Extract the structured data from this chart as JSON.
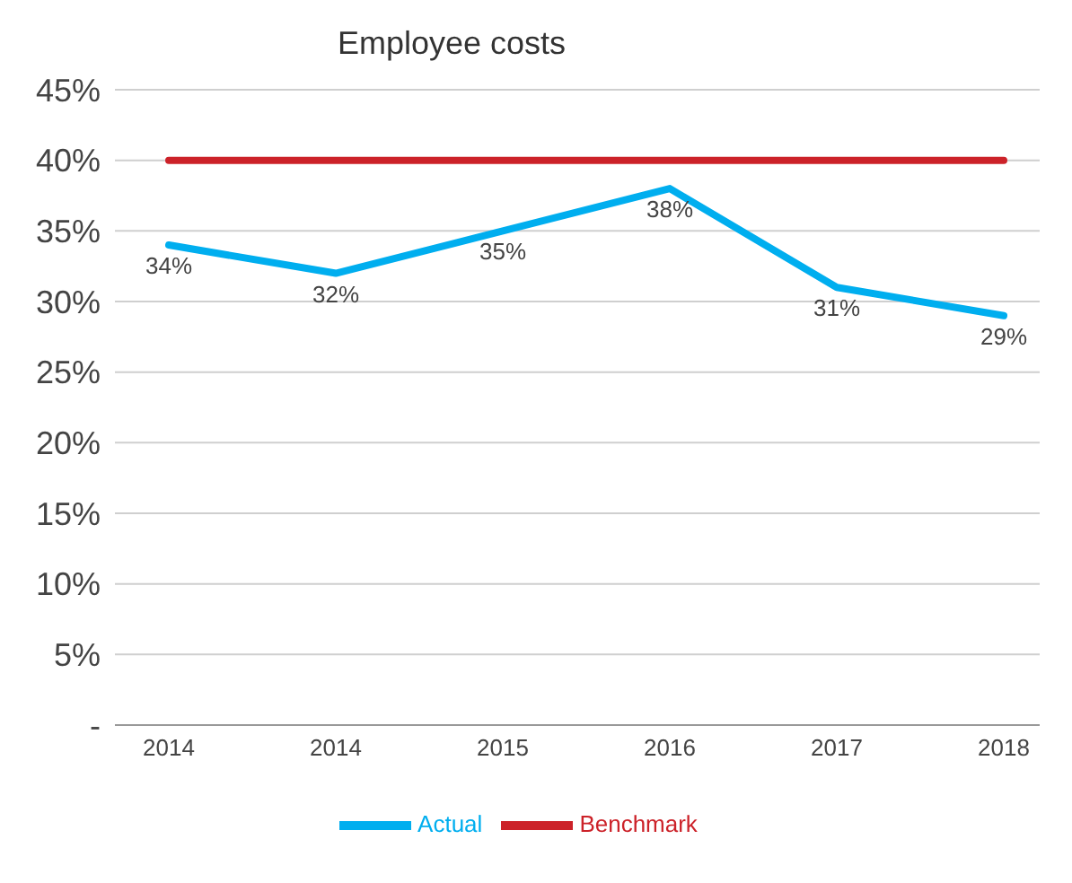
{
  "chart_data": {
    "type": "line",
    "title": "Employee costs",
    "categories": [
      "2014",
      "2014",
      "2015",
      "2016",
      "2017",
      "2018"
    ],
    "series": [
      {
        "name": "Benchmark",
        "color": "#cc2229",
        "values": [
          40,
          40,
          40,
          40,
          40,
          40
        ]
      },
      {
        "name": "Actual",
        "color": "#00aeef",
        "values": [
          34,
          32,
          35,
          38,
          31,
          29
        ],
        "value_labels": [
          "34%",
          "32%",
          "35%",
          "38%",
          "31%",
          "29%"
        ]
      }
    ],
    "ylim": [
      0,
      45
    ],
    "yticks": [
      {
        "value": 0,
        "label": "-"
      },
      {
        "value": 5,
        "label": "5%"
      },
      {
        "value": 10,
        "label": "10%"
      },
      {
        "value": 15,
        "label": "15%"
      },
      {
        "value": 20,
        "label": "20%"
      },
      {
        "value": 25,
        "label": "25%"
      },
      {
        "value": 30,
        "label": "30%"
      },
      {
        "value": 35,
        "label": "35%"
      },
      {
        "value": 40,
        "label": "40%"
      },
      {
        "value": 45,
        "label": "45%"
      }
    ],
    "grid": "y",
    "legend": "bottom",
    "marker": "none",
    "line_style": "solid"
  }
}
